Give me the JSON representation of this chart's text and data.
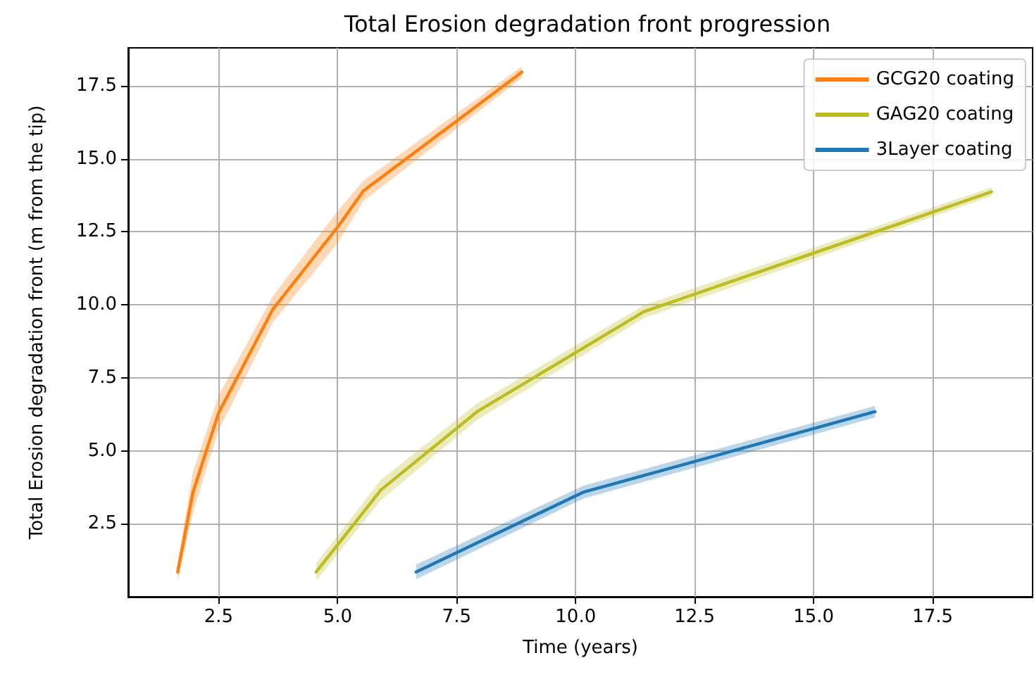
{
  "chart_data": {
    "type": "line",
    "title": "Total Erosion degradation front progression",
    "xlabel": "Time (years)",
    "ylabel": "Total Erosion degradation front (m from the tip)",
    "xlim": [
      0.6,
      19.6
    ],
    "ylim": [
      0,
      18.8
    ],
    "xticks": [
      2.5,
      {
        "value": 5,
        "label": "5.0"
      },
      7.5,
      {
        "value": 10,
        "label": "10.0"
      },
      12.5,
      {
        "value": 15,
        "label": "15.0"
      },
      17.5
    ],
    "yticks": [
      2.5,
      {
        "value": 5,
        "label": "5.0"
      },
      7.5,
      {
        "value": 10,
        "label": "10.0"
      },
      12.5,
      {
        "value": 15,
        "label": "15.0"
      },
      17.5
    ],
    "grid": true,
    "legend": "top right",
    "marker": "none",
    "line_style": "solid",
    "series": [
      {
        "name": "GCG20 coating",
        "color": "#ff7f0e",
        "x": [
          1.64,
          1.96,
          2.5,
          3.64,
          5.0,
          5.54,
          8.87
        ],
        "values": [
          0.85,
          3.58,
          6.3,
          9.85,
          12.66,
          13.9,
          17.97
        ],
        "lower": [
          0.55,
          2.88,
          5.7,
          9.4,
          12.11,
          13.55,
          17.77
        ],
        "upper": [
          1.15,
          4.28,
          6.9,
          10.3,
          13.21,
          14.25,
          18.17
        ]
      },
      {
        "name": "GAG20 coating",
        "color": "#bcbd22",
        "x": [
          4.55,
          5.91,
          7.93,
          11.44,
          18.74
        ],
        "values": [
          0.85,
          3.66,
          6.34,
          9.77,
          13.87
        ],
        "lower": [
          0.55,
          3.31,
          6.06,
          9.55,
          13.72
        ],
        "upper": [
          1.15,
          4.01,
          6.62,
          9.99,
          14.02
        ]
      },
      {
        "name": "3Layer coating",
        "color": "#1f77b4",
        "x": [
          6.65,
          10.16,
          16.29
        ],
        "values": [
          0.85,
          3.58,
          6.34
        ],
        "lower": [
          0.6,
          3.36,
          6.14
        ],
        "upper": [
          1.1,
          3.8,
          6.54
        ]
      }
    ]
  }
}
